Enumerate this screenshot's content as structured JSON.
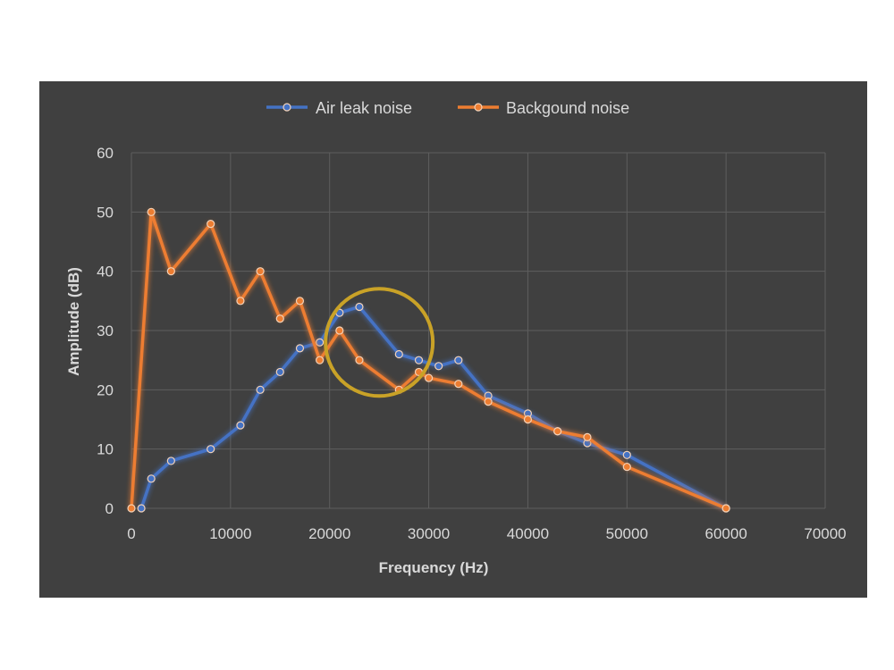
{
  "chart_data": {
    "type": "line",
    "title": "",
    "xlabel": "Frequency (Hz)",
    "ylabel": "Amplitude (dB)",
    "xlim": [
      0,
      70000
    ],
    "ylim": [
      0,
      60
    ],
    "xticks": [
      0,
      10000,
      20000,
      30000,
      40000,
      50000,
      60000,
      70000
    ],
    "yticks": [
      0,
      10,
      20,
      30,
      40,
      50,
      60
    ],
    "grid": true,
    "legend_position": "top",
    "series": [
      {
        "name": "Air leak noise",
        "color": "#4472c4",
        "x": [
          1000,
          2000,
          4000,
          8000,
          11000,
          13000,
          15000,
          17000,
          19000,
          21000,
          23000,
          27000,
          29000,
          31000,
          33000,
          36000,
          40000,
          43000,
          46000,
          50000,
          60000
        ],
        "y": [
          0,
          5,
          8,
          10,
          14,
          20,
          23,
          27,
          28,
          33,
          34,
          26,
          25,
          24,
          25,
          19,
          16,
          13,
          11,
          9,
          0
        ]
      },
      {
        "name": "Backgound noise",
        "color": "#ed7d31",
        "x": [
          0,
          2000,
          4000,
          8000,
          11000,
          13000,
          15000,
          17000,
          19000,
          21000,
          23000,
          27000,
          29000,
          30000,
          33000,
          36000,
          40000,
          43000,
          46000,
          50000,
          60000
        ],
        "y": [
          0,
          50,
          40,
          48,
          35,
          40,
          32,
          35,
          25,
          30,
          25,
          20,
          23,
          22,
          21,
          18,
          15,
          13,
          12,
          7,
          0
        ]
      }
    ],
    "annotations": [
      {
        "type": "circle",
        "color": "#c9a227",
        "center_x": 25000,
        "center_y": 28
      }
    ]
  }
}
